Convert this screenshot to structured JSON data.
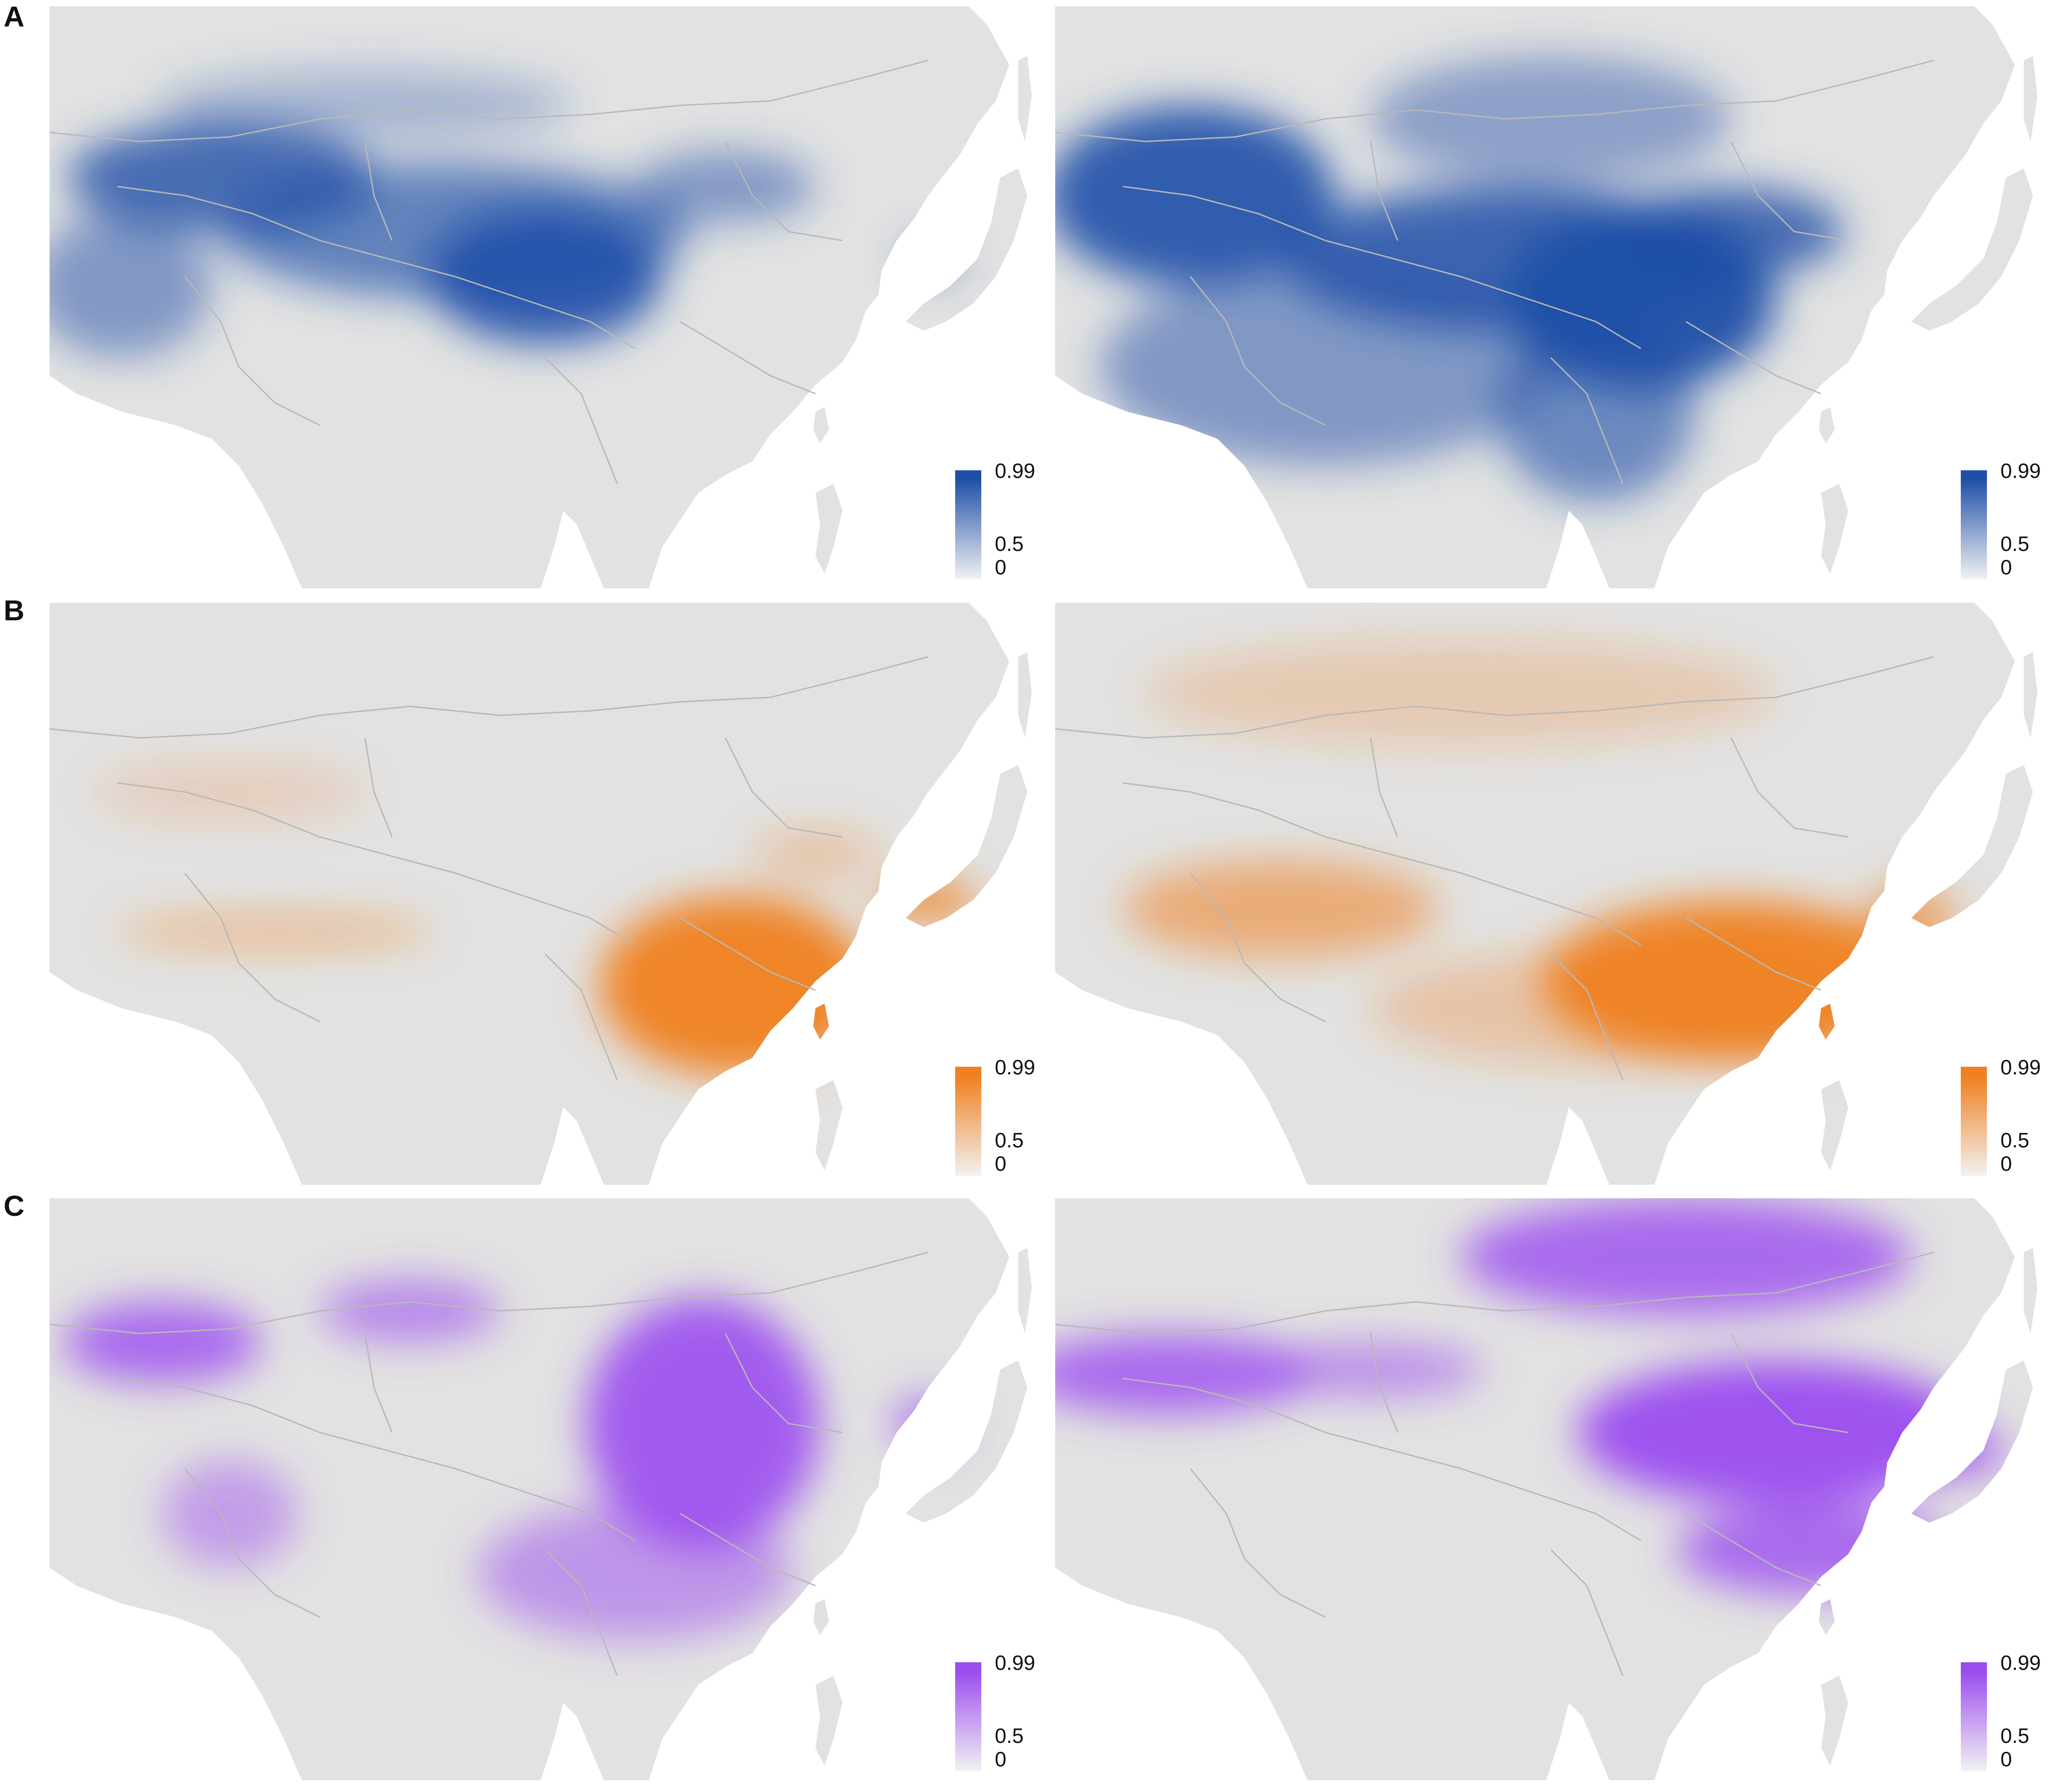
{
  "figure": {
    "rows": [
      {
        "label": "A",
        "color": "#1f4fa8",
        "panels": [
          {
            "legend": {
              "max": "0.99",
              "mid": "0.5",
              "min": "0"
            }
          },
          {
            "legend": {
              "max": "0.99",
              "mid": "0.5",
              "min": "0"
            }
          }
        ]
      },
      {
        "label": "B",
        "color": "#f07f1e",
        "panels": [
          {
            "legend": {
              "max": "0.99",
              "mid": "0.5",
              "min": "0"
            }
          },
          {
            "legend": {
              "max": "0.99",
              "mid": "0.5",
              "min": "0"
            }
          }
        ]
      },
      {
        "label": "C",
        "color": "#9b4cf0",
        "panels": [
          {
            "legend": {
              "max": "0.99",
              "mid": "0.5",
              "min": "0"
            }
          },
          {
            "legend": {
              "max": "0.99",
              "mid": "0.5",
              "min": "0"
            }
          }
        ]
      }
    ],
    "land_color": "#e2e2e2",
    "low_color": "#f2f2f2"
  }
}
